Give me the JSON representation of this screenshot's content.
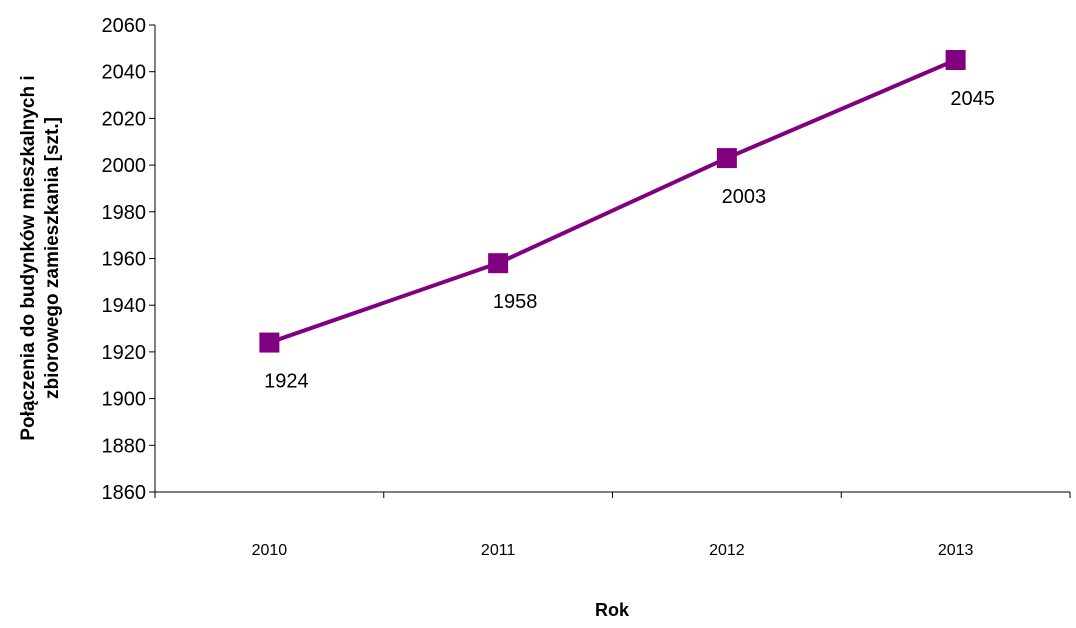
{
  "chart_data": {
    "type": "line",
    "title": "",
    "xlabel": "Rok",
    "ylabel_lines": [
      "Połączenia do budynków mieszkalnych i",
      "zbiorowego zamieszkania [szt.]"
    ],
    "categories": [
      "2010",
      "2011",
      "2012",
      "2013"
    ],
    "series": [
      {
        "values": [
          1924,
          1958,
          2003,
          2045
        ],
        "color": "#800080",
        "marker": "square"
      }
    ],
    "data_labels": [
      "1924",
      "1958",
      "2003",
      "2045"
    ],
    "ylim": [
      1860,
      2060
    ],
    "yticks": [
      "1860",
      "1880",
      "1900",
      "1920",
      "1940",
      "1960",
      "1980",
      "2000",
      "2020",
      "2040",
      "2060"
    ],
    "grid": false,
    "legend": "none"
  }
}
